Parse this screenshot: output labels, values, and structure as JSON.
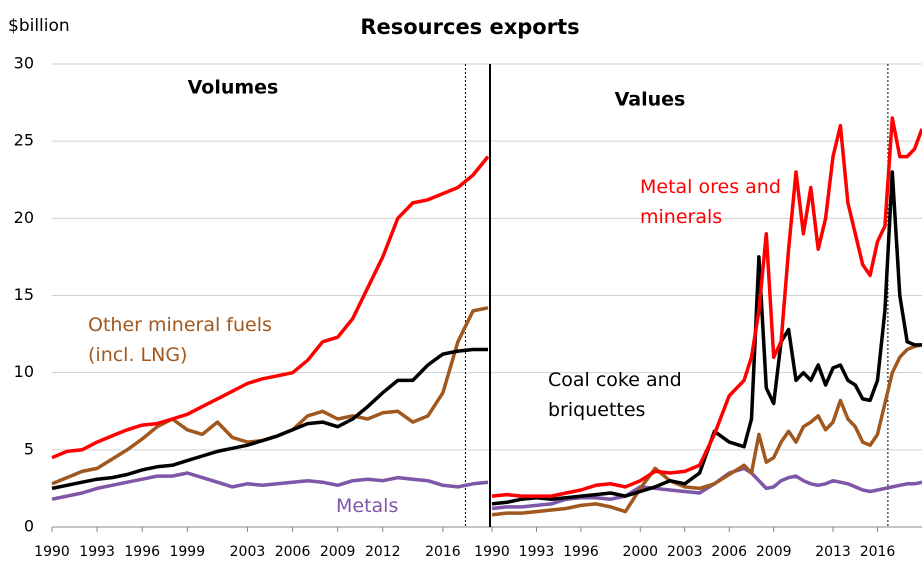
{
  "chart_data": [
    {
      "type": "line",
      "title": "Resources exports",
      "ylabel": "$billion",
      "subtitle": "Volumes",
      "x": [
        1990,
        1991,
        1992,
        1993,
        1994,
        1995,
        1996,
        1997,
        1998,
        1999,
        2000,
        2001,
        2002,
        2003,
        2004,
        2005,
        2006,
        2007,
        2008,
        2009,
        2010,
        2011,
        2012,
        2013,
        2014,
        2015,
        2016,
        2017,
        2018,
        2019
      ],
      "xlim": [
        1990,
        2019
      ],
      "xticks": [
        1990,
        1993,
        1996,
        1999,
        2003,
        2006,
        2009,
        2012,
        2016
      ],
      "ylim": [
        0,
        30
      ],
      "yticks": [
        0,
        5,
        10,
        15,
        20,
        25,
        30
      ],
      "grid": true,
      "vline": 2017.5,
      "series": [
        {
          "color": "#ff0000",
          "values": [
            4.5,
            4.9,
            5.0,
            5.5,
            5.9,
            6.3,
            6.6,
            6.7,
            7.0,
            7.3,
            7.8,
            8.3,
            8.8,
            9.3,
            9.6,
            9.8,
            10.0,
            10.8,
            12.0,
            12.3,
            13.5,
            15.5,
            17.5,
            20.0,
            21.0,
            21.2,
            21.6,
            22.0,
            22.8,
            24.0
          ]
        },
        {
          "color": "#000000",
          "values": [
            2.5,
            2.7,
            2.9,
            3.1,
            3.2,
            3.4,
            3.7,
            3.9,
            4.0,
            4.3,
            4.6,
            4.9,
            5.1,
            5.3,
            5.6,
            5.9,
            6.3,
            6.7,
            6.8,
            6.5,
            7.0,
            7.8,
            8.7,
            9.5,
            9.5,
            10.5,
            11.2,
            11.4,
            11.5,
            11.5
          ]
        },
        {
          "name": "Other mineral fuels (incl. LNG)",
          "color": "#a0581e",
          "values": [
            2.8,
            3.2,
            3.6,
            3.8,
            4.4,
            5.0,
            5.7,
            6.5,
            7.0,
            6.3,
            6.0,
            6.8,
            5.8,
            5.5,
            5.6,
            5.9,
            6.3,
            7.2,
            7.5,
            7.0,
            7.2,
            7.0,
            7.4,
            7.5,
            6.8,
            7.2,
            8.7,
            12.0,
            14.0,
            14.2
          ]
        },
        {
          "name": "Metals",
          "color": "#7e57a8",
          "values": [
            1.8,
            2.0,
            2.2,
            2.5,
            2.7,
            2.9,
            3.1,
            3.3,
            3.3,
            3.5,
            3.2,
            2.9,
            2.6,
            2.8,
            2.7,
            2.8,
            2.9,
            3.0,
            2.9,
            2.7,
            3.0,
            3.1,
            3.0,
            3.2,
            3.1,
            3.0,
            2.7,
            2.6,
            2.8,
            2.9
          ]
        }
      ]
    },
    {
      "type": "line",
      "subtitle": "Values",
      "x": [
        1990,
        1991,
        1992,
        1993,
        1994,
        1995,
        1996,
        1997,
        1998,
        1999,
        2000,
        2001,
        2002,
        2003,
        2004,
        2005,
        2006,
        2007,
        2007.5,
        2008,
        2008.5,
        2009,
        2009.5,
        2010,
        2010.5,
        2011,
        2011.5,
        2012,
        2012.5,
        2013,
        2013.5,
        2014,
        2014.5,
        2015,
        2015.5,
        2016,
        2016.5,
        2017,
        2017.5,
        2018,
        2018.5,
        2019
      ],
      "xlim": [
        1990,
        2019
      ],
      "xticks": [
        1990,
        1993,
        1996,
        2000,
        2003,
        2006,
        2009,
        2013,
        2016
      ],
      "ylim": [
        0,
        30
      ],
      "vline": 2016.7,
      "series": [
        {
          "name": "Metal ores and minerals",
          "color": "#ff0000",
          "values": [
            2.0,
            2.1,
            2.0,
            2.0,
            2.0,
            2.2,
            2.4,
            2.7,
            2.8,
            2.6,
            3.0,
            3.6,
            3.5,
            3.6,
            4.0,
            6.0,
            8.5,
            9.5,
            11,
            14,
            19,
            11,
            12,
            18,
            23,
            19,
            22,
            18,
            20,
            24,
            26,
            21,
            19,
            17,
            16.3,
            18.5,
            19.5,
            26.5,
            24,
            24,
            24.5,
            25.8
          ]
        },
        {
          "name": "Coal coke and briquettes",
          "color": "#000000",
          "values": [
            1.5,
            1.6,
            1.8,
            1.9,
            1.8,
            1.9,
            2.0,
            2.1,
            2.2,
            2.0,
            2.3,
            2.6,
            3.0,
            2.8,
            3.5,
            6.2,
            5.5,
            5.2,
            7,
            17.5,
            9,
            8,
            12,
            12.8,
            9.5,
            10,
            9.5,
            10.5,
            9.2,
            10.3,
            10.5,
            9.5,
            9.2,
            8.3,
            8.2,
            9.5,
            14,
            23,
            15,
            12,
            11.8,
            11.8
          ]
        },
        {
          "color": "#a0581e",
          "values": [
            0.8,
            0.9,
            0.9,
            1.0,
            1.1,
            1.2,
            1.4,
            1.5,
            1.3,
            1.0,
            2.5,
            3.8,
            3.0,
            2.6,
            2.5,
            2.8,
            3.4,
            4.0,
            3.5,
            6,
            4.2,
            4.5,
            5.5,
            6.2,
            5.5,
            6.5,
            6.8,
            7.2,
            6.3,
            6.8,
            8.2,
            7,
            6.5,
            5.5,
            5.3,
            6,
            8,
            10,
            11,
            11.5,
            11.7,
            11.8
          ]
        },
        {
          "color": "#7e57a8",
          "values": [
            1.2,
            1.3,
            1.3,
            1.4,
            1.5,
            1.8,
            1.9,
            1.9,
            1.8,
            2.0,
            2.6,
            2.5,
            2.4,
            2.3,
            2.2,
            2.8,
            3.5,
            3.8,
            3.5,
            3.0,
            2.5,
            2.6,
            3.0,
            3.2,
            3.3,
            3.0,
            2.8,
            2.7,
            2.8,
            3.0,
            2.9,
            2.8,
            2.6,
            2.4,
            2.3,
            2.4,
            2.5,
            2.6,
            2.7,
            2.8,
            2.8,
            2.9
          ]
        }
      ]
    }
  ]
}
